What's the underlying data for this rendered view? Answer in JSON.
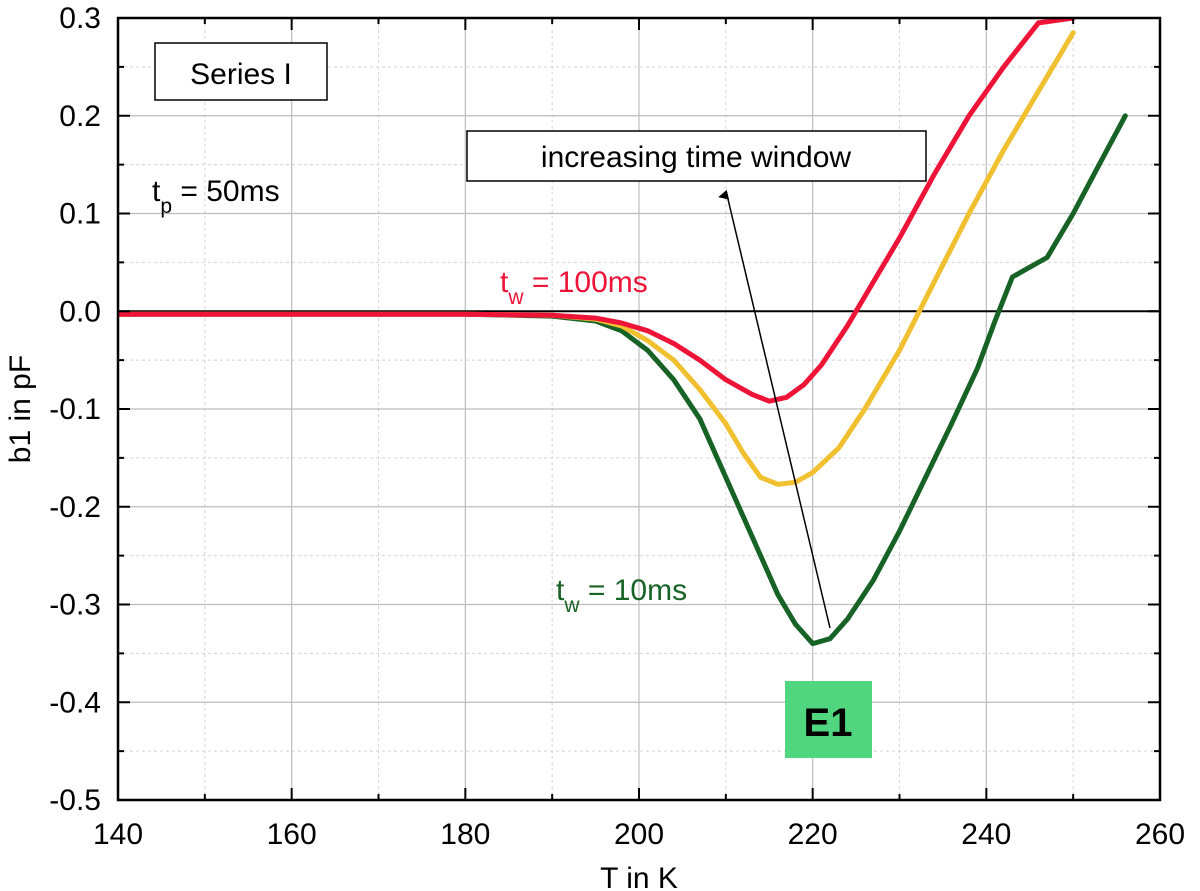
{
  "chart_data": {
    "type": "line",
    "xlabel": "T in K",
    "ylabel": "b1 in pF",
    "xlim": [
      140,
      260
    ],
    "ylim": [
      -0.5,
      0.3
    ],
    "x_major_ticks": [
      140,
      160,
      180,
      200,
      220,
      240,
      260
    ],
    "y_major_ticks": [
      0.3,
      0.2,
      0.1,
      0.0,
      -0.1,
      -0.2,
      -0.3,
      -0.4,
      -0.5
    ],
    "x_tick_labels": [
      "140",
      "160",
      "180",
      "200",
      "220",
      "240",
      "260"
    ],
    "y_tick_labels": [
      "0.3",
      "0.2",
      "0.1",
      "0.0",
      "-0.1",
      "-0.2",
      "-0.3",
      "-0.4",
      "-0.5"
    ],
    "grid": true,
    "series": [
      {
        "color": "#176225",
        "x": [
          140,
          150,
          160,
          170,
          180,
          190,
          195,
          198,
          201,
          204,
          207,
          210,
          213,
          216,
          218,
          220,
          222,
          224,
          227,
          230,
          233,
          236,
          239,
          241,
          243,
          244,
          247,
          250,
          253,
          256
        ],
        "y": [
          -0.003,
          -0.003,
          -0.003,
          -0.003,
          -0.003,
          -0.005,
          -0.01,
          -0.02,
          -0.04,
          -0.07,
          -0.11,
          -0.17,
          -0.23,
          -0.29,
          -0.32,
          -0.34,
          -0.335,
          -0.315,
          -0.275,
          -0.225,
          -0.17,
          -0.115,
          -0.058,
          -0.01,
          0.035,
          0.04,
          0.055,
          0.1,
          0.15,
          0.2
        ]
      },
      {
        "color": "#f0c030",
        "x": [
          140,
          150,
          160,
          170,
          180,
          190,
          195,
          198,
          201,
          204,
          207,
          210,
          212,
          214,
          216,
          218,
          220,
          223,
          226,
          230,
          234,
          238,
          242,
          246,
          250
        ],
        "y": [
          -0.003,
          -0.003,
          -0.003,
          -0.003,
          -0.003,
          -0.004,
          -0.008,
          -0.015,
          -0.03,
          -0.05,
          -0.08,
          -0.115,
          -0.145,
          -0.17,
          -0.177,
          -0.175,
          -0.165,
          -0.14,
          -0.1,
          -0.04,
          0.03,
          0.1,
          0.165,
          0.225,
          0.285
        ]
      },
      {
        "color": "#ee1438",
        "x": [
          140,
          150,
          160,
          170,
          180,
          190,
          195,
          198,
          201,
          204,
          207,
          210,
          213,
          215,
          217,
          219,
          221,
          224,
          227,
          230,
          234,
          238,
          242,
          246,
          250
        ],
        "y": [
          -0.003,
          -0.003,
          -0.003,
          -0.003,
          -0.003,
          -0.004,
          -0.007,
          -0.012,
          -0.02,
          -0.033,
          -0.05,
          -0.07,
          -0.085,
          -0.092,
          -0.088,
          -0.075,
          -0.055,
          -0.015,
          0.03,
          0.075,
          0.14,
          0.2,
          0.25,
          0.295,
          0.3
        ]
      }
    ],
    "annotations": {
      "series_box": "Series I",
      "tp_main": "t",
      "tp_sub": "p",
      "tp_value": " = 50ms",
      "tw100_main": "t",
      "tw100_sub": "w",
      "tw100_value": " = 100ms",
      "tw10_main": "t",
      "tw10_sub": "w",
      "tw10_value": " = 10ms",
      "arrow_label": "increasing time window",
      "e1_label": "E1"
    },
    "colors": {
      "tw100": "#ee1438",
      "tw10": "#176225",
      "e1_bg": "#4fd67e"
    }
  }
}
